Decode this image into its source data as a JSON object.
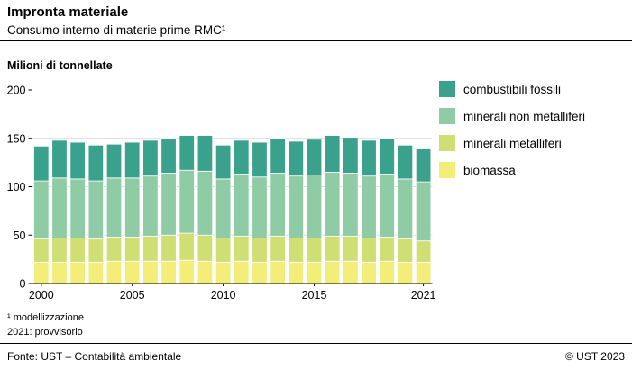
{
  "header": {
    "title": "Impronta materiale",
    "subtitle": "Consumo interno di materie prime RMC¹"
  },
  "chart_data": {
    "type": "bar",
    "stacked": true,
    "title": "Impronta materiale",
    "subtitle": "Consumo interno di materie prime RMC¹",
    "ylabel": "Milioni di tonnellate",
    "xlabel": "",
    "ylim": [
      0,
      200
    ],
    "yticks": [
      0,
      50,
      100,
      150,
      200
    ],
    "grid": true,
    "legend_position": "right",
    "categories": [
      2000,
      2001,
      2002,
      2003,
      2004,
      2005,
      2006,
      2007,
      2008,
      2009,
      2010,
      2011,
      2012,
      2013,
      2014,
      2015,
      2016,
      2017,
      2018,
      2019,
      2020,
      2021
    ],
    "x_ticks": [
      {
        "index": 0,
        "label": "2000"
      },
      {
        "index": 5,
        "label": "2005"
      },
      {
        "index": 10,
        "label": "2010"
      },
      {
        "index": 15,
        "label": "2015"
      },
      {
        "index": 21,
        "label": "2021"
      }
    ],
    "series": [
      {
        "name": "biomassa",
        "color": "#f3ee79",
        "values": [
          22,
          22,
          22,
          22,
          23,
          23,
          23,
          23,
          24,
          23,
          22,
          23,
          22,
          23,
          22,
          22,
          23,
          23,
          22,
          23,
          22,
          22
        ]
      },
      {
        "name": "minerali metalliferi",
        "color": "#cfdf74",
        "values": [
          24,
          25,
          25,
          24,
          25,
          25,
          26,
          27,
          28,
          27,
          25,
          26,
          25,
          26,
          25,
          25,
          26,
          26,
          25,
          25,
          24,
          22
        ]
      },
      {
        "name": "minerali non metalliferi",
        "color": "#8fcba4",
        "values": [
          60,
          62,
          61,
          60,
          61,
          61,
          62,
          64,
          65,
          66,
          61,
          64,
          63,
          65,
          64,
          65,
          66,
          65,
          64,
          65,
          62,
          61
        ]
      },
      {
        "name": "combustibili fossili",
        "color": "#3aa28c",
        "values": [
          36,
          39,
          38,
          37,
          35,
          37,
          37,
          36,
          36,
          37,
          35,
          35,
          36,
          36,
          36,
          37,
          38,
          37,
          37,
          37,
          35,
          34
        ]
      }
    ]
  },
  "footnotes": [
    "¹ modellizzazione",
    "2021: provvisorio"
  ],
  "footer": {
    "source": "Fonte: UST – Contabilità ambientale",
    "copyright": "© UST 2023"
  }
}
